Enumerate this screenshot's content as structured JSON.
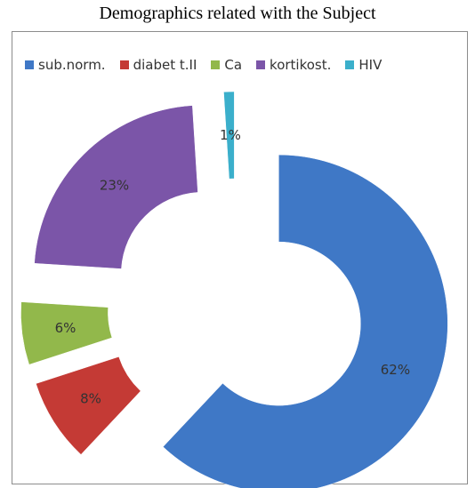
{
  "title": "Demographics related with the Subject",
  "chart_data": {
    "type": "pie",
    "title": "Demographics related with the Subject",
    "legend_position": "top",
    "categories": [
      "sub.norm.",
      "diabet t.II",
      "Ca",
      "kortikost.",
      "HIV"
    ],
    "values": [
      62,
      8,
      6,
      23,
      1
    ],
    "labels": [
      "62%",
      "8%",
      "6%",
      "23%",
      "1%"
    ],
    "colors": [
      "#3F78C6",
      "#C43A35",
      "#92B84B",
      "#7B55A8",
      "#3BAFCB"
    ]
  }
}
